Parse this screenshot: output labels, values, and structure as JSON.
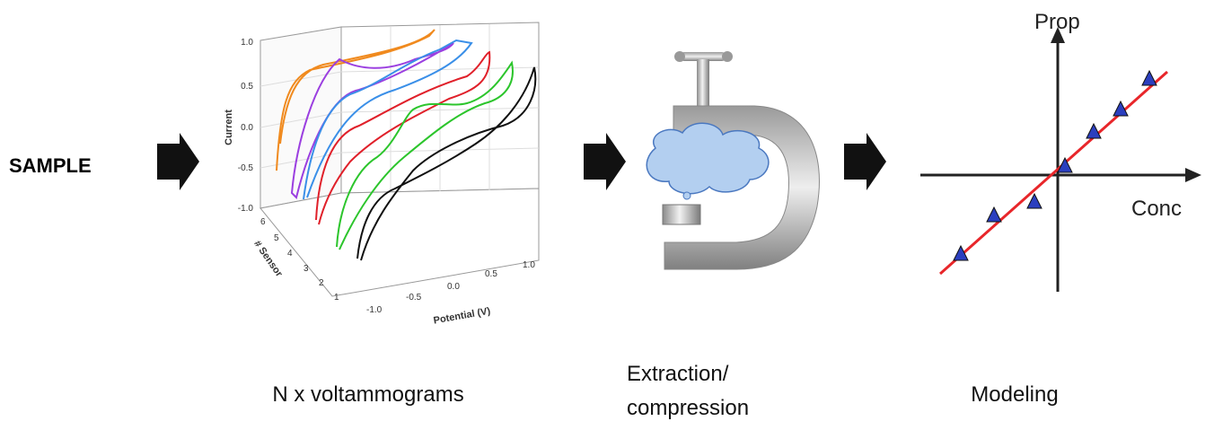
{
  "sample_label": "SAMPLE",
  "voltammogram_plot": {
    "y_axis_label": "Current",
    "y_ticks": [
      "1.0",
      "0.5",
      "0.0",
      "-0.5",
      "-1.0"
    ],
    "sensor_axis_label": "# Sensor",
    "sensor_ticks": [
      "6",
      "5",
      "4",
      "3",
      "2",
      "1"
    ],
    "x_axis_label": "Potential (V)",
    "x_ticks": [
      "-1.0",
      "-0.5",
      "0.0",
      "0.5",
      "1.0"
    ]
  },
  "modeling_plot": {
    "y_axis_label": "Prop",
    "x_axis_label": "Conc"
  },
  "captions": {
    "voltammograms": "N x voltammograms",
    "extraction": [
      "Extraction/",
      "compression"
    ],
    "modeling": "Modeling"
  }
}
